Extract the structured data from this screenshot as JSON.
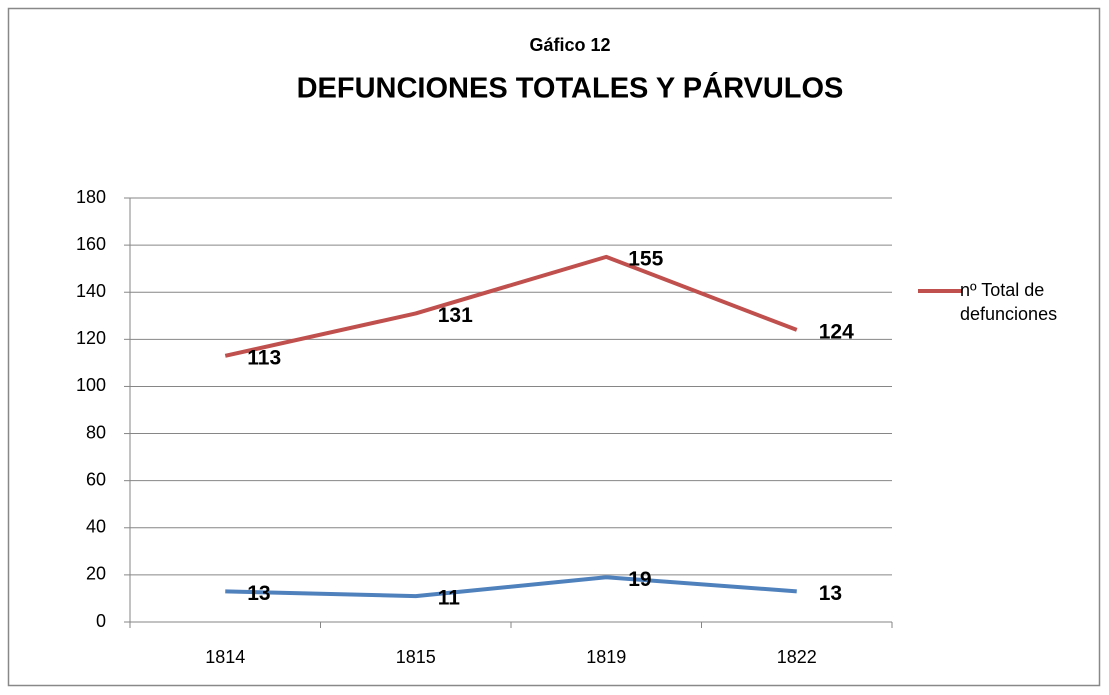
{
  "chart_data": {
    "type": "line",
    "subtitle": "Gáfico 12",
    "title": "DEFUNCIONES TOTALES Y PÁRVULOS",
    "categories": [
      "1814",
      "1815",
      "1819",
      "1822"
    ],
    "series": [
      {
        "name": "nº Total de defunciones",
        "color": "#c0504d",
        "values": [
          113,
          131,
          155,
          124
        ]
      },
      {
        "color": "#4f81bd",
        "values": [
          13,
          11,
          19,
          13
        ]
      }
    ],
    "ylim": [
      0,
      180
    ],
    "yticks": [
      0,
      20,
      40,
      60,
      80,
      100,
      120,
      140,
      160,
      180
    ],
    "grid": true,
    "legend": "right"
  }
}
